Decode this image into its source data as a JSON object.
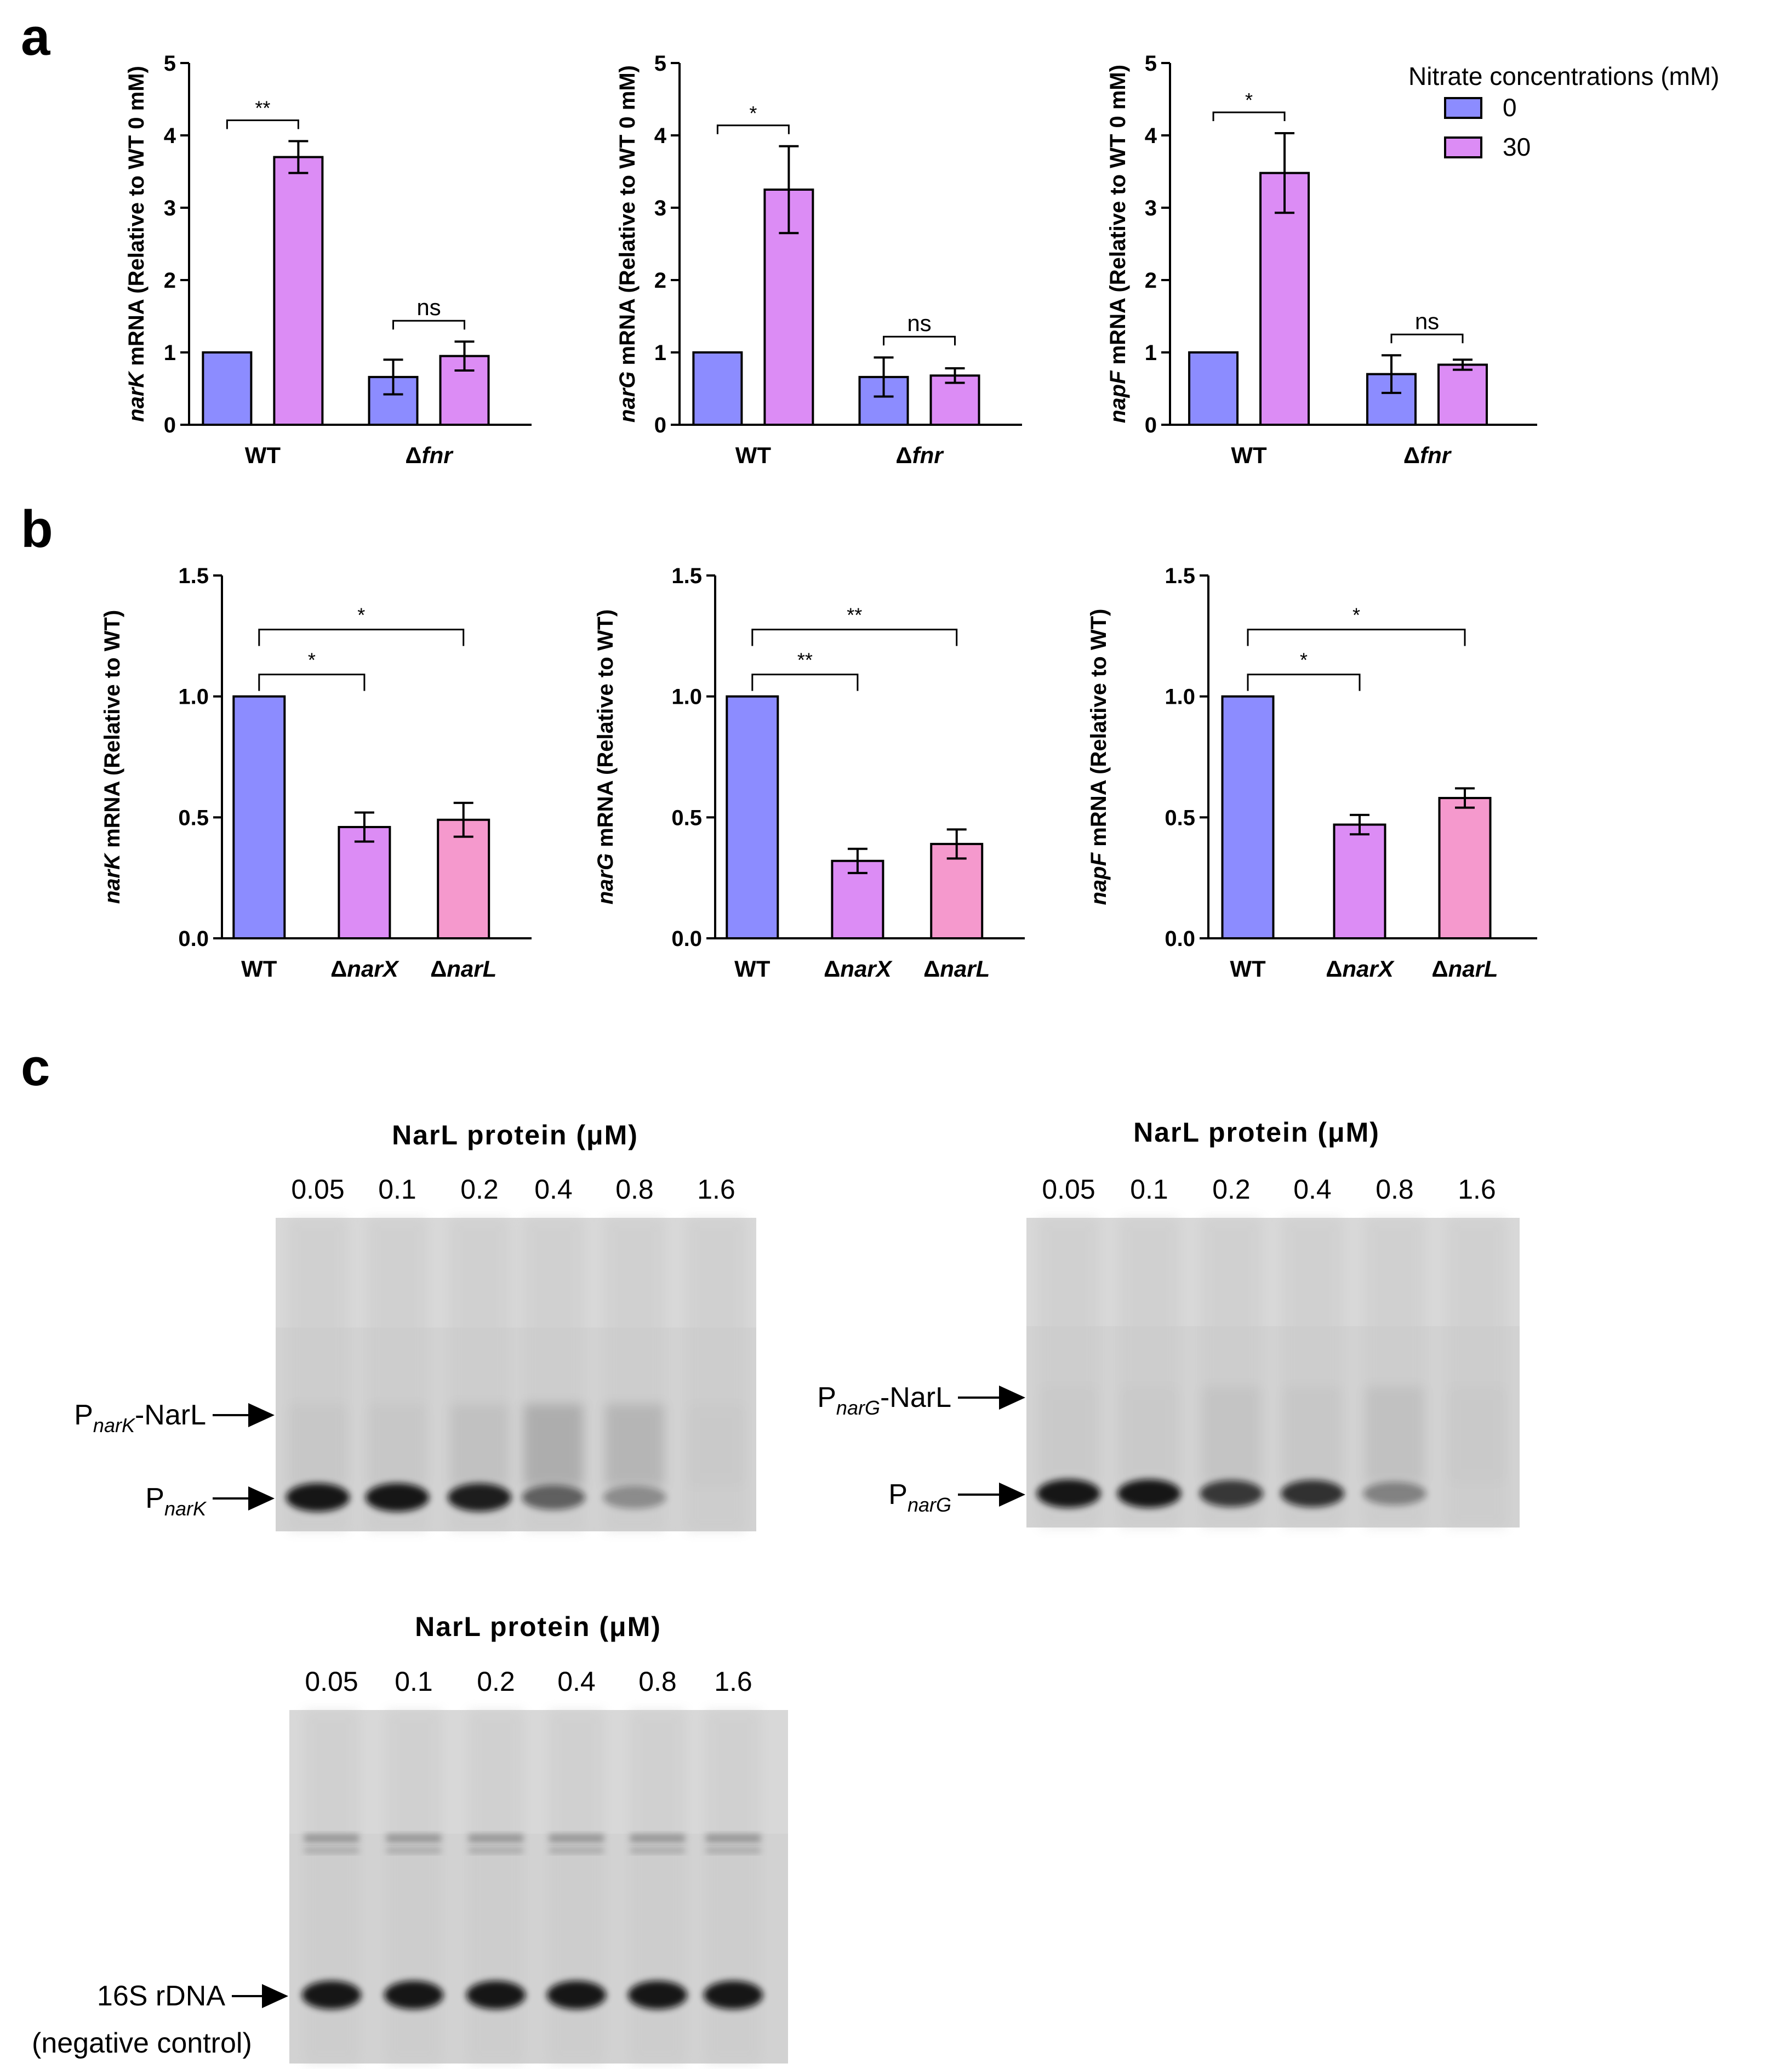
{
  "panels": {
    "a": "a",
    "b": "b",
    "c": "c"
  },
  "colors": {
    "blue": "#8c8cff",
    "violet": "#dc8cf5",
    "pink": "#f599cd"
  },
  "chart_data": [
    {
      "id": "a1",
      "type": "bar",
      "panel": "a",
      "ylabel_gene": "narK",
      "ylabel_rest": " mRNA (Relative to WT 0 mM)",
      "ylim": [
        0,
        5
      ],
      "yticks": [
        "0",
        "1",
        "2",
        "3",
        "4",
        "5"
      ],
      "groups": [
        {
          "label": "WT",
          "parts": [
            {
              "t": "WT",
              "i": false
            }
          ]
        },
        {
          "label": "Δfnr",
          "parts": [
            {
              "t": "Δ",
              "i": false
            },
            {
              "t": "fnr",
              "i": true
            }
          ]
        }
      ],
      "series": [
        {
          "name": "0",
          "color": "blue",
          "values": [
            1.0,
            0.66
          ],
          "errors": [
            0,
            0.24
          ]
        },
        {
          "name": "30",
          "color": "violet",
          "values": [
            3.7,
            0.95
          ],
          "errors": [
            0.22,
            0.2
          ]
        }
      ],
      "sig": [
        {
          "text": "**",
          "group": 0,
          "bracket": "top"
        },
        {
          "text": "ns",
          "group": 1,
          "bracket": "top"
        }
      ]
    },
    {
      "id": "a2",
      "type": "bar",
      "panel": "a",
      "ylabel_gene": "narG",
      "ylabel_rest": " mRNA (Relative to WT 0 mM)",
      "ylim": [
        0,
        5
      ],
      "yticks": [
        "0",
        "1",
        "2",
        "3",
        "4",
        "5"
      ],
      "groups": [
        {
          "label": "WT",
          "parts": [
            {
              "t": "WT",
              "i": false
            }
          ]
        },
        {
          "label": "Δfnr",
          "parts": [
            {
              "t": "Δ",
              "i": false
            },
            {
              "t": "fnr",
              "i": true
            }
          ]
        }
      ],
      "series": [
        {
          "name": "0",
          "color": "blue",
          "values": [
            1.0,
            0.66
          ],
          "errors": [
            0,
            0.27
          ]
        },
        {
          "name": "30",
          "color": "violet",
          "values": [
            3.25,
            0.68
          ],
          "errors": [
            0.6,
            0.1
          ]
        }
      ],
      "sig": [
        {
          "text": "*",
          "group": 0
        },
        {
          "text": "ns",
          "group": 1
        }
      ]
    },
    {
      "id": "a3",
      "type": "bar",
      "panel": "a",
      "ylabel_gene": "napF",
      "ylabel_rest": " mRNA (Relative to WT 0 mM)",
      "ylim": [
        0,
        5
      ],
      "yticks": [
        "0",
        "1",
        "2",
        "3",
        "4",
        "5"
      ],
      "groups": [
        {
          "label": "WT",
          "parts": [
            {
              "t": "WT",
              "i": false
            }
          ]
        },
        {
          "label": "Δfnr",
          "parts": [
            {
              "t": "Δ",
              "i": false
            },
            {
              "t": "fnr",
              "i": true
            }
          ]
        }
      ],
      "series": [
        {
          "name": "0",
          "color": "blue",
          "values": [
            1.0,
            0.7
          ],
          "errors": [
            0,
            0.26
          ]
        },
        {
          "name": "30",
          "color": "violet",
          "values": [
            3.48,
            0.83
          ],
          "errors": [
            0.55,
            0.07
          ]
        }
      ],
      "sig": [
        {
          "text": "*",
          "group": 0
        },
        {
          "text": "ns",
          "group": 1
        }
      ],
      "legend": {
        "title": "Nitrate concentrations (mM)",
        "entries": [
          "0",
          "30"
        ],
        "position": "top-right"
      }
    },
    {
      "id": "b1",
      "type": "bar",
      "panel": "b",
      "ylabel_gene": "narK",
      "ylabel_rest": " mRNA (Relative to WT)",
      "ylim": [
        0,
        1.5
      ],
      "yticks": [
        "0.0",
        "0.5",
        "1.0",
        "1.5"
      ],
      "categories": [
        {
          "label": "WT",
          "parts": [
            {
              "t": "WT",
              "i": false
            }
          ]
        },
        {
          "label": "ΔnarX",
          "parts": [
            {
              "t": "Δ",
              "i": false
            },
            {
              "t": "narX",
              "i": true
            }
          ]
        },
        {
          "label": "ΔnarL",
          "parts": [
            {
              "t": "Δ",
              "i": false
            },
            {
              "t": "narL",
              "i": true
            }
          ]
        }
      ],
      "values": [
        1.0,
        0.46,
        0.49
      ],
      "errors": [
        0,
        0.06,
        0.07
      ],
      "bar_colors": [
        "blue",
        "violet",
        "pink"
      ],
      "sig": [
        {
          "text": "*",
          "from": 0,
          "to": 1
        },
        {
          "text": "*",
          "from": 0,
          "to": 2
        }
      ]
    },
    {
      "id": "b2",
      "type": "bar",
      "panel": "b",
      "ylabel_gene": "narG",
      "ylabel_rest": " mRNA (Relative to WT)",
      "ylim": [
        0,
        1.5
      ],
      "yticks": [
        "0.0",
        "0.5",
        "1.0",
        "1.5"
      ],
      "categories": [
        {
          "label": "WT",
          "parts": [
            {
              "t": "WT",
              "i": false
            }
          ]
        },
        {
          "label": "ΔnarX",
          "parts": [
            {
              "t": "Δ",
              "i": false
            },
            {
              "t": "narX",
              "i": true
            }
          ]
        },
        {
          "label": "ΔnarL",
          "parts": [
            {
              "t": "Δ",
              "i": false
            },
            {
              "t": "narL",
              "i": true
            }
          ]
        }
      ],
      "values": [
        1.0,
        0.32,
        0.39
      ],
      "errors": [
        0,
        0.05,
        0.06
      ],
      "bar_colors": [
        "blue",
        "violet",
        "pink"
      ],
      "sig": [
        {
          "text": "**",
          "from": 0,
          "to": 1
        },
        {
          "text": "**",
          "from": 0,
          "to": 2
        }
      ]
    },
    {
      "id": "b3",
      "type": "bar",
      "panel": "b",
      "ylabel_gene": "napF",
      "ylabel_rest": " mRNA (Relative to WT)",
      "ylim": [
        0,
        1.5
      ],
      "yticks": [
        "0.0",
        "0.5",
        "1.0",
        "1.5"
      ],
      "categories": [
        {
          "label": "WT",
          "parts": [
            {
              "t": "WT",
              "i": false
            }
          ]
        },
        {
          "label": "ΔnarX",
          "parts": [
            {
              "t": "Δ",
              "i": false
            },
            {
              "t": "narX",
              "i": true
            }
          ]
        },
        {
          "label": "ΔnarL",
          "parts": [
            {
              "t": "Δ",
              "i": false
            },
            {
              "t": "narL",
              "i": true
            }
          ]
        }
      ],
      "values": [
        1.0,
        0.47,
        0.58
      ],
      "errors": [
        0,
        0.04,
        0.04
      ],
      "bar_colors": [
        "blue",
        "violet",
        "pink"
      ],
      "sig": [
        {
          "text": "*",
          "from": 0,
          "to": 1
        },
        {
          "text": "*",
          "from": 0,
          "to": 2
        }
      ]
    }
  ],
  "gels": [
    {
      "id": "gel1",
      "title": "NarL protein (μM)",
      "lanes": [
        "0.05",
        "0.1",
        "0.2",
        "0.4",
        "0.8",
        "1.6"
      ],
      "labels": [
        {
          "main": "P",
          "sub": "narK",
          "suffix": "-NarL",
          "band": "complex"
        },
        {
          "main": "P",
          "sub": "narK",
          "suffix": "",
          "band": "free"
        }
      ],
      "free_band": [
        1.0,
        1.0,
        0.95,
        0.45,
        0.12,
        0.0
      ],
      "complex_band": [
        0.1,
        0.1,
        0.2,
        0.55,
        0.4,
        0.05
      ]
    },
    {
      "id": "gel2",
      "title": "NarL protein (μM)",
      "lanes": [
        "0.05",
        "0.1",
        "0.2",
        "0.4",
        "0.8",
        "1.6"
      ],
      "labels": [
        {
          "main": "P",
          "sub": "narG",
          "suffix": "-NarL",
          "band": "complex"
        },
        {
          "main": "P",
          "sub": "narG",
          "suffix": "",
          "band": "free"
        }
      ],
      "free_band": [
        1.0,
        1.0,
        0.75,
        0.8,
        0.2,
        0.0
      ],
      "complex_band": [
        0.05,
        0.05,
        0.15,
        0.1,
        0.2,
        0.05
      ]
    },
    {
      "id": "gel3",
      "title": "NarL protein (μM)",
      "lanes": [
        "0.05",
        "0.1",
        "0.2",
        "0.4",
        "0.8",
        "1.6"
      ],
      "labels": [
        {
          "main": "16S rDNA",
          "sub": "",
          "suffix": "",
          "band": "free"
        }
      ],
      "note": "(negative control)",
      "free_band": [
        1.0,
        1.0,
        1.0,
        1.0,
        1.0,
        1.0
      ],
      "upper_band": [
        0.5,
        0.5,
        0.5,
        0.5,
        0.5,
        0.5
      ]
    }
  ]
}
